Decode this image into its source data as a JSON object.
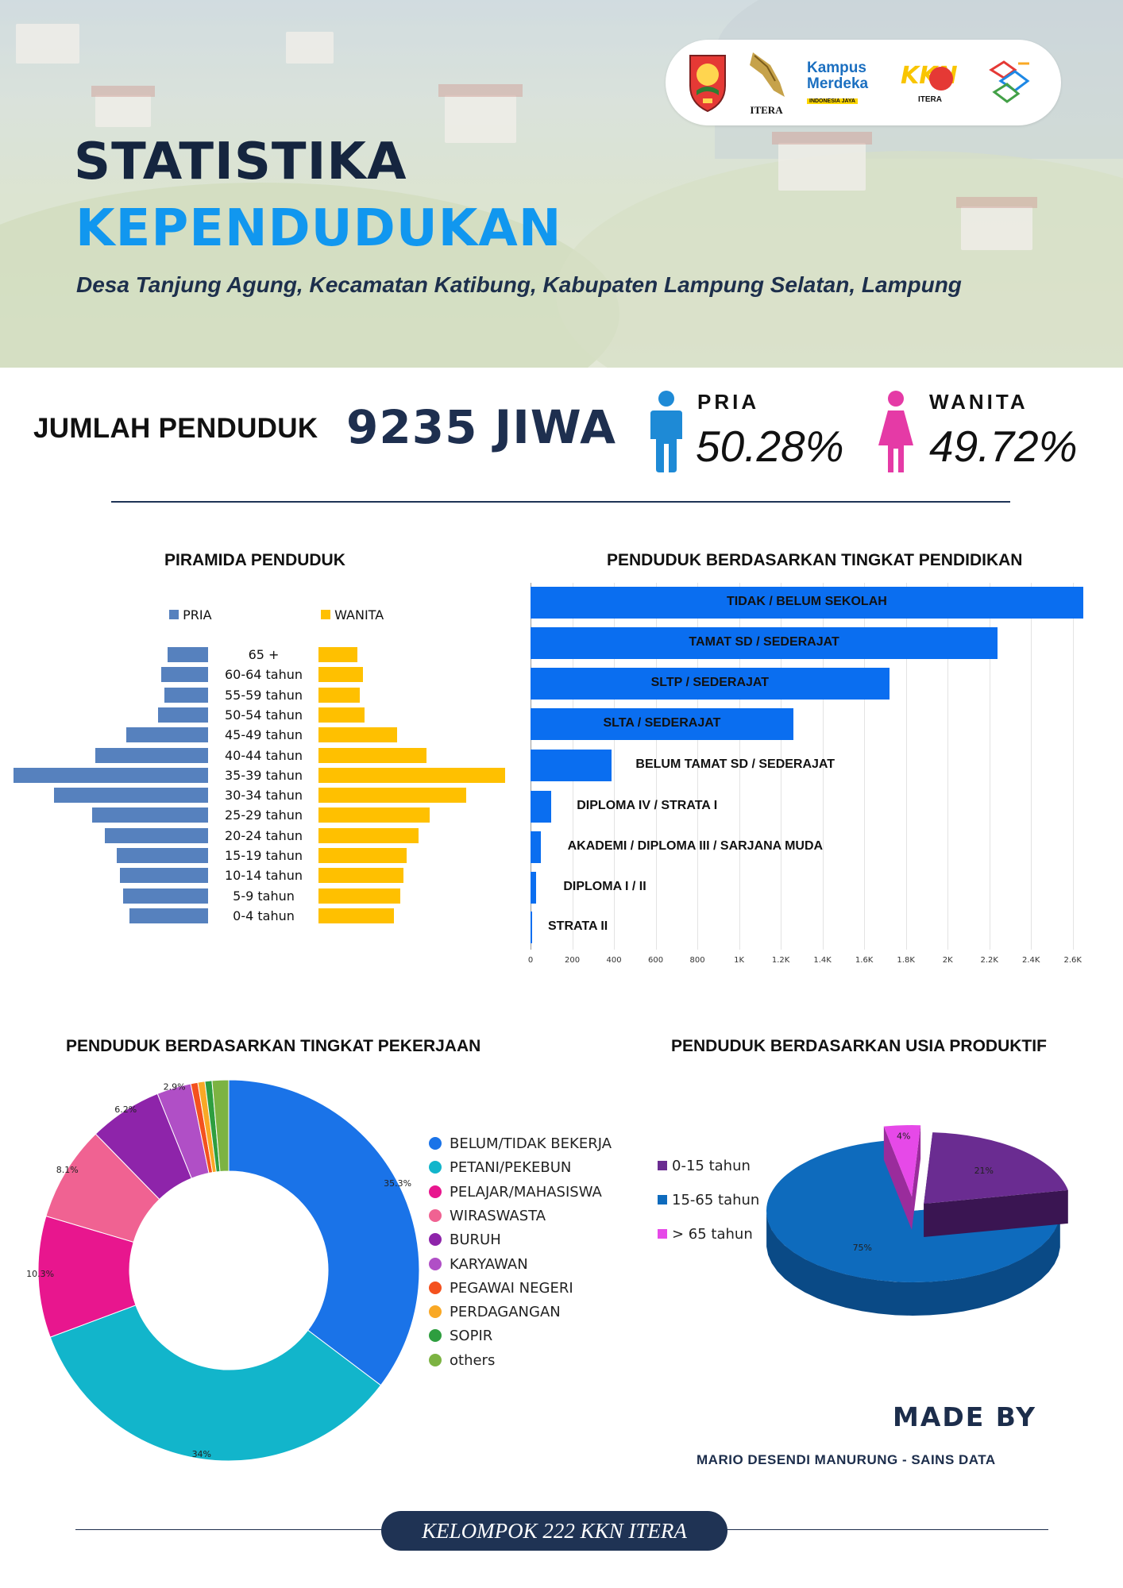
{
  "header": {
    "title_line1": "STATISTIKA",
    "title_line2": "KEPENDUDUKAN",
    "subtitle": "Desa Tanjung Agung, Kecamatan Katibung, Kabupaten Lampung Selatan, Lampung",
    "logos": [
      "kabupaten-emblem",
      "ITERA",
      "Kampus Merdeka",
      "KKN ITERA",
      "kkn-itera-222-logo"
    ],
    "logo_texts": {
      "itera": "ITERA",
      "kampus": "Kampus",
      "merdeka": "Merdeka",
      "indonesia_jaya": "INDONESIA JAYA",
      "kkn": "KKN",
      "kkn_itera": "ITERA"
    }
  },
  "population": {
    "label": "JUMLAH PENDUDUK",
    "value": "9235 JIWA",
    "male": {
      "label": "PRIA",
      "percent": "50.28%",
      "color": "#1e8ad6",
      "icon": "male-person-icon"
    },
    "female": {
      "label": "WANITA",
      "percent": "49.72%",
      "color": "#e53aa6",
      "icon": "female-person-icon"
    }
  },
  "chart_data": [
    {
      "type": "bar",
      "orientation": "horizontal-pyramid",
      "title": "PIRAMIDA PENDUDUK",
      "legend": [
        "PRIA",
        "WANITA"
      ],
      "colors": {
        "PRIA": "#5681be",
        "WANITA": "#ffc000"
      },
      "categories": [
        "65 +",
        "60-64 tahun",
        "55-59 tahun",
        "50-54 tahun",
        "45-49 tahun",
        "40-44 tahun",
        "35-39 tahun",
        "30-34 tahun",
        "25-29 tahun",
        "20-24 tahun",
        "15-19 tahun",
        "10-14 tahun",
        "5-9 tahun",
        "0-4 tahun"
      ],
      "series": [
        {
          "name": "PRIA",
          "values": [
            130,
            150,
            140,
            160,
            260,
            360,
            620,
            490,
            370,
            330,
            290,
            280,
            270,
            250
          ]
        },
        {
          "name": "WANITA",
          "values": [
            125,
            142,
            132,
            148,
            250,
            345,
            595,
            470,
            355,
            318,
            280,
            270,
            260,
            240
          ]
        }
      ]
    },
    {
      "type": "bar",
      "orientation": "horizontal",
      "title": "PENDUDUK BERDASARKAN TINGKAT PENDIDIKAN",
      "categories": [
        "TIDAK / BELUM SEKOLAH",
        "TAMAT SD / SEDERAJAT",
        "SLTP / SEDERAJAT",
        "SLTA / SEDERAJAT",
        "BELUM TAMAT SD / SEDERAJAT",
        "DIPLOMA IV / STRATA I",
        "AKADEMI /  DIPLOMA III / SARJANA MUDA",
        "DIPLOMA I / II",
        "STRATA II"
      ],
      "values": [
        2650,
        2240,
        1720,
        1260,
        390,
        100,
        48,
        28,
        6
      ],
      "xlim": [
        0,
        2700
      ],
      "x_ticks": [
        "0",
        "200",
        "400",
        "600",
        "800",
        "1K",
        "1.2K",
        "1.4K",
        "1.6K",
        "1.8K",
        "2K",
        "2.2K",
        "2.4K",
        "2.6K"
      ],
      "color": "#0a6ef0"
    },
    {
      "type": "pie",
      "variant": "donut",
      "title": "PENDUDUK BERDASARKAN TINGKAT PEKERJAAN",
      "labels": [
        "BELUM/TIDAK BEKERJA",
        "PETANI/PEKEBUN",
        "PELAJAR/MAHASISWA",
        "WIRASWASTA",
        "BURUH",
        "KARYAWAN",
        "PEGAWAI NEGERI",
        "PERDAGANGAN",
        "SOPIR",
        "others"
      ],
      "values": [
        35.3,
        34,
        10.3,
        8.1,
        6.2,
        2.9,
        0.6,
        0.6,
        0.6,
        1.4
      ],
      "value_labels": [
        "35.3%",
        "34%",
        "10.3%",
        "8.1%",
        "6.2%",
        "2.9%",
        "",
        "",
        "",
        ""
      ],
      "colors": [
        "#1a73e8",
        "#12b5cb",
        "#e8168e",
        "#f06292",
        "#8e24aa",
        "#b04fc6",
        "#f4511e",
        "#f9a825",
        "#2e9e3f",
        "#7cb342"
      ]
    },
    {
      "type": "pie",
      "variant": "3d-exploded",
      "title": "PENDUDUK BERDASARKAN USIA PRODUKTIF",
      "labels": [
        "0-15 tahun",
        "15-65 tahun",
        "> 65 tahun"
      ],
      "values": [
        21,
        75,
        4
      ],
      "value_labels": [
        "21%",
        "75%",
        "4%"
      ],
      "colors": [
        "#6a2c91",
        "#0e6bbd",
        "#e649e8"
      ]
    }
  ],
  "footer": {
    "made_by": "MADE BY",
    "author": "MARIO DESENDI MANURUNG - SAINS DATA",
    "group": "KELOMPOK 222 KKN ITERA"
  }
}
